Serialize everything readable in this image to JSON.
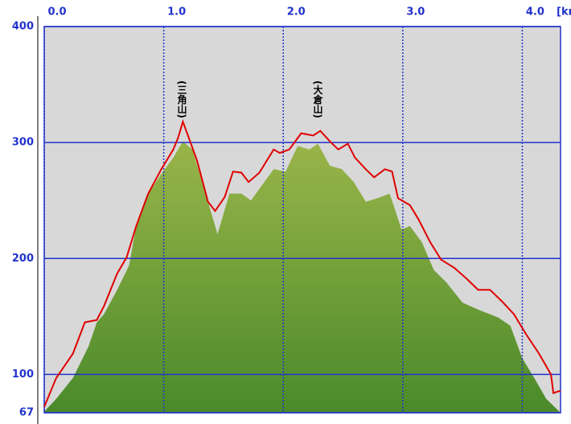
{
  "chart_data": {
    "type": "area-line",
    "x_label": "[km]",
    "xlim": [
      0,
      4.32
    ],
    "ylim": [
      67,
      400
    ],
    "xticks": [
      {
        "value": 0,
        "label": "0.0"
      },
      {
        "value": 1,
        "label": "1.0"
      },
      {
        "value": 2,
        "label": "2.0"
      },
      {
        "value": 3,
        "label": "3.0"
      },
      {
        "value": 4,
        "label": "4.0"
      }
    ],
    "yticks": [
      67,
      100,
      200,
      300,
      400
    ],
    "grid": true,
    "series": [
      {
        "kind": "area",
        "color": "#6b9a36",
        "gradient": [
          "#9ab54a",
          "#4a8a2a"
        ],
        "x": [
          0,
          0.1,
          0.24,
          0.37,
          0.44,
          0.5,
          0.61,
          0.71,
          0.77,
          0.87,
          0.98,
          1.08,
          1.16,
          1.24,
          1.35,
          1.45,
          1.55,
          1.65,
          1.73,
          1.82,
          1.92,
          2.02,
          2.12,
          2.22,
          2.29,
          2.39,
          2.49,
          2.59,
          2.69,
          2.79,
          2.89,
          2.99,
          3.06,
          3.16,
          3.26,
          3.36,
          3.5,
          3.63,
          3.8,
          3.9,
          4.0,
          4.1,
          4.2,
          4.32
        ],
        "values": [
          68,
          79,
          97,
          124,
          145,
          152,
          173,
          194,
          228,
          256,
          273,
          287,
          301,
          294,
          256,
          221,
          256,
          256,
          250,
          263,
          277,
          275,
          297,
          294,
          299,
          280,
          277,
          266,
          249,
          252,
          256,
          225,
          228,
          214,
          190,
          180,
          162,
          156,
          149,
          142,
          114,
          97,
          79,
          67
        ]
      },
      {
        "kind": "line",
        "color": "#e00000",
        "x": [
          0,
          0.1,
          0.24,
          0.34,
          0.44,
          0.5,
          0.61,
          0.69,
          0.77,
          0.87,
          0.98,
          1.08,
          1.12,
          1.16,
          1.21,
          1.28,
          1.37,
          1.43,
          1.51,
          1.58,
          1.65,
          1.71,
          1.8,
          1.92,
          1.97,
          2.05,
          2.15,
          2.25,
          2.31,
          2.39,
          2.46,
          2.54,
          2.6,
          2.69,
          2.76,
          2.85,
          2.91,
          2.96,
          3.06,
          3.13,
          3.23,
          3.32,
          3.43,
          3.53,
          3.63,
          3.73,
          3.83,
          3.93,
          4.03,
          4.14,
          4.24,
          4.26,
          4.32
        ],
        "values": [
          72,
          97,
          118,
          145,
          147,
          159,
          187,
          201,
          228,
          256,
          277,
          294,
          304,
          318,
          304,
          284,
          249,
          241,
          253,
          275,
          274,
          266,
          274,
          294,
          291,
          294,
          308,
          306,
          310,
          301,
          294,
          299,
          287,
          277,
          270,
          277,
          275,
          252,
          246,
          234,
          214,
          199,
          192,
          183,
          173,
          173,
          163,
          152,
          135,
          118,
          100,
          84,
          86
        ]
      }
    ],
    "annotations": [
      "(三角山)",
      "(大倉山)"
    ]
  }
}
